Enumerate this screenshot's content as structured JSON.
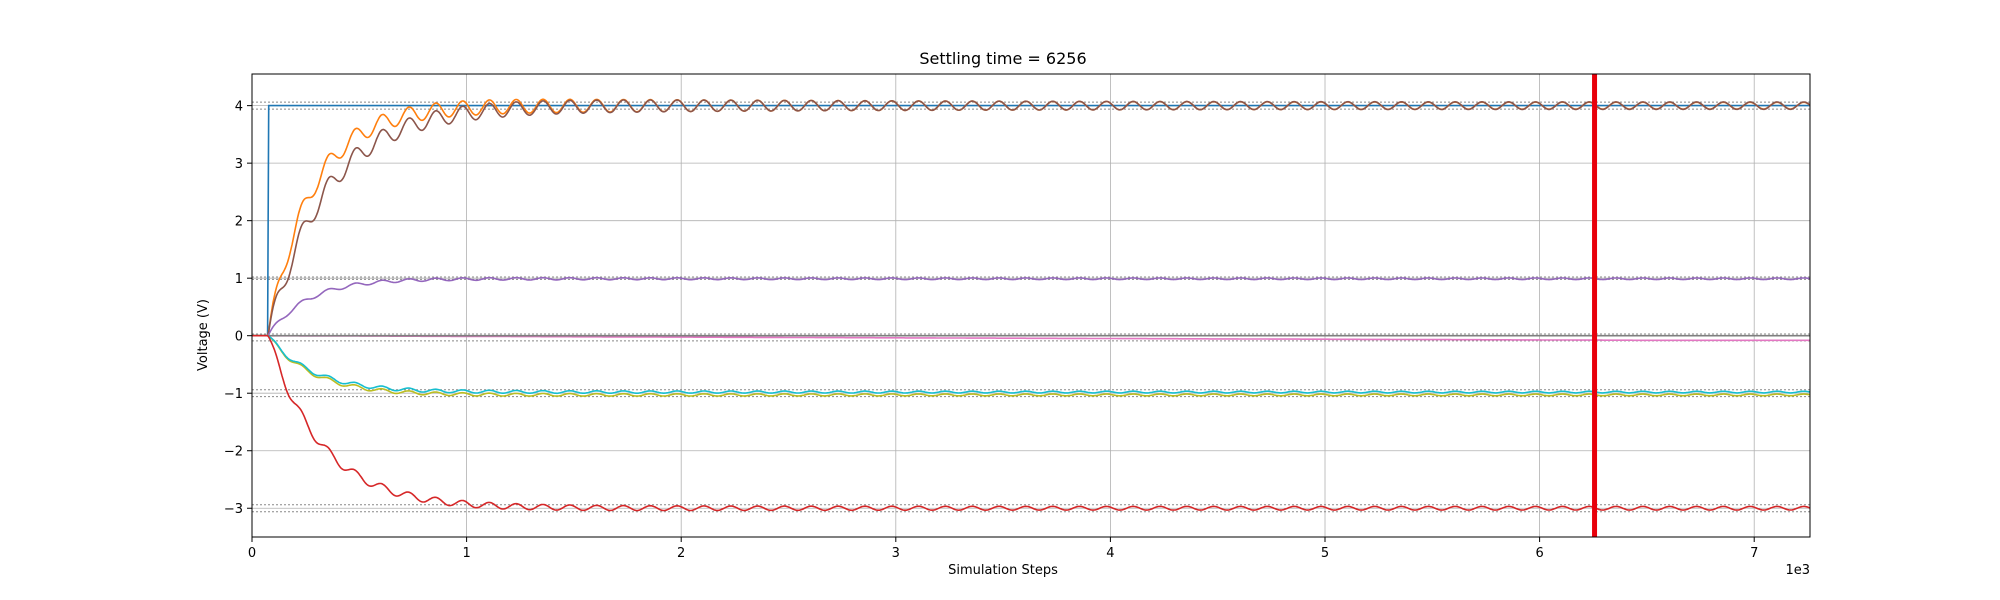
{
  "chart_data": {
    "type": "line",
    "title": "Settling time = 6256",
    "xlabel": "Simulation Steps",
    "ylabel": "Voltage (V)",
    "x_offset_label": "1e3",
    "xlim": [
      0,
      7.26
    ],
    "ylim": [
      -3.5,
      4.55
    ],
    "xticks": [
      0,
      1,
      2,
      3,
      4,
      5,
      6,
      7
    ],
    "yticks": [
      -3,
      -2,
      -1,
      0,
      1,
      2,
      3,
      4
    ],
    "grid": true,
    "settling_time": 6.256,
    "settling_marker_color": "#e8000b",
    "reference_levels": [
      {
        "value": 4.0,
        "band": 0.06
      },
      {
        "value": 1.0,
        "band": 0.02
      },
      {
        "value": -0.03,
        "band": 0.06
      },
      {
        "value": -1.0,
        "band": 0.06
      },
      {
        "value": -3.0,
        "band": 0.06
      }
    ],
    "series": [
      {
        "color": "#1f77b4",
        "final": 4.0,
        "kind": "step",
        "rise_end": 0.05
      },
      {
        "color": "#ff7f0e",
        "final": 4.0,
        "kind": "osc",
        "amp": 0.16,
        "period": 0.125,
        "decay": 1.6,
        "rise_end": 0.45
      },
      {
        "color": "#8c564b",
        "final": 4.0,
        "kind": "osc",
        "amp": 0.18,
        "period": 0.125,
        "decay": 1.3,
        "rise_end": 0.6
      },
      {
        "color": "#9467bd",
        "final": 0.99,
        "kind": "osc",
        "amp": 0.04,
        "period": 0.125,
        "decay": 0.8,
        "rise_end": 0.4
      },
      {
        "color": "#e377c2",
        "final": -0.08,
        "kind": "drift",
        "start": 0.0
      },
      {
        "color": "#7f7f7f",
        "final": 0.0,
        "kind": "flat"
      },
      {
        "color": "#bcbd22",
        "final": -1.03,
        "kind": "osc",
        "amp": 0.04,
        "period": 0.125,
        "decay": 1.0,
        "rise_end": 0.45
      },
      {
        "color": "#17becf",
        "final": -0.98,
        "kind": "osc",
        "amp": 0.04,
        "period": 0.125,
        "decay": 1.0,
        "rise_end": 0.45
      },
      {
        "color": "#d62728",
        "final": -3.0,
        "kind": "osc",
        "amp": 0.09,
        "period": 0.125,
        "decay": 0.9,
        "rise_end": 0.55
      }
    ]
  }
}
